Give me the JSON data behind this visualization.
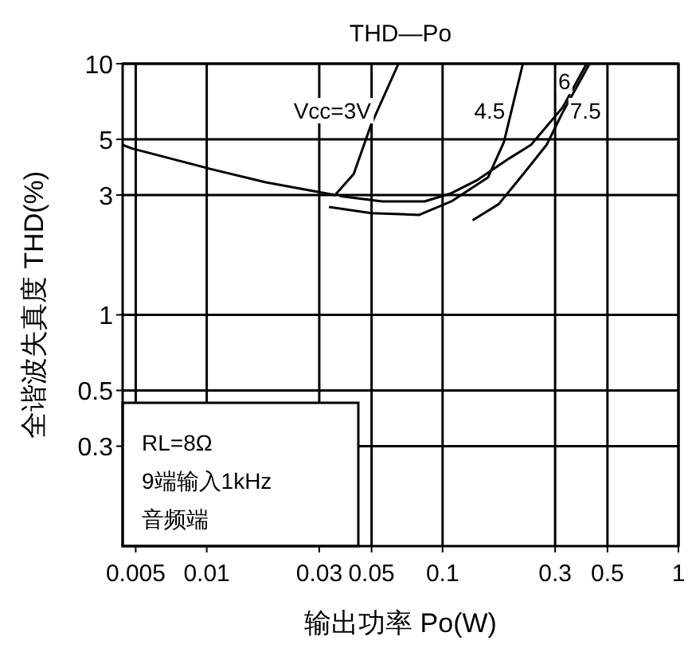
{
  "chart_data": {
    "type": "line",
    "title": "THD—Po",
    "xlabel": "输出功率 Po(W)",
    "ylabel": "全谐波失真度 THD(%)",
    "log": "xy",
    "xlim": [
      0.0044,
      1
    ],
    "ylim": [
      0.12,
      10
    ],
    "xticks": [
      0.005,
      0.01,
      0.03,
      0.05,
      0.1,
      0.3,
      0.5,
      1
    ],
    "yticks": [
      10,
      5,
      3,
      1,
      0.5,
      0.3
    ],
    "grid": true,
    "legend": false,
    "marker": "none",
    "line_style": "solid",
    "annotations": [
      "RL=8Ω\n9端输入1kHz\n音频端"
    ],
    "series": [
      {
        "name": "Vcc=3V",
        "color": "#000000",
        "x": [
          0.0044,
          0.0048,
          0.0105,
          0.0178,
          0.035,
          0.042,
          0.0497,
          0.065
        ],
        "values": [
          4.75,
          4.6,
          3.8,
          3.37,
          3.0,
          3.64,
          5.7,
          10
        ]
      },
      {
        "name": "4.5",
        "color": "#000000",
        "x": [
          0.033,
          0.0499,
          0.0796,
          0.109,
          0.156,
          0.182,
          0.219
        ],
        "values": [
          2.69,
          2.54,
          2.5,
          2.83,
          3.53,
          4.88,
          10
        ]
      },
      {
        "name": "6",
        "color": "#000000",
        "x": [
          0.0366,
          0.0554,
          0.0839,
          0.109,
          0.141,
          0.192,
          0.237,
          0.323,
          0.408
        ],
        "values": [
          2.97,
          2.83,
          2.83,
          3.05,
          3.45,
          4.2,
          4.75,
          6.7,
          10
        ]
      },
      {
        "name": "7.5",
        "color": "#000000",
        "x": [
          0.134,
          0.173,
          0.219,
          0.276,
          0.323,
          0.42
        ],
        "values": [
          2.38,
          2.76,
          3.62,
          4.75,
          6.4,
          10
        ]
      }
    ]
  }
}
